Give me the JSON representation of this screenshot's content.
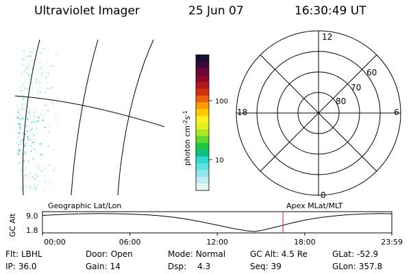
{
  "header": {
    "instrument": "Ultraviolet Imager",
    "date": "25 Jun 07",
    "time": "16:30:49 UT"
  },
  "colorbar": {
    "label_main": "photon cm",
    "label_exp1": "-2",
    "label_s": "s",
    "label_exp2": "-1",
    "ticks": [
      "100",
      "10"
    ],
    "colors": [
      "#1a1030",
      "#3a0a3a",
      "#6a0a3a",
      "#8c0a28",
      "#b01a1a",
      "#d03010",
      "#ee6010",
      "#ff9a00",
      "#ffcc00",
      "#ffee20",
      "#e0f020",
      "#a8e820",
      "#60d830",
      "#20c840",
      "#10c080",
      "#30d8d0",
      "#60e0e0",
      "#90e6ea",
      "#c0ecf0",
      "#e4f2f4"
    ],
    "ticks_values": [
      100,
      10
    ],
    "range": [
      3,
      600
    ]
  },
  "polar": {
    "mlt_labels": {
      "top": "12",
      "left": "18",
      "right": "6",
      "bottom": "0"
    },
    "lat_labels": [
      "60",
      "70",
      "80"
    ]
  },
  "bottom": {
    "ylabel": "GC Alt",
    "yticks": [
      "9.0",
      "1.8"
    ],
    "left_title": "Geographic Lat/Lon",
    "right_title": "Apex MLat/MLT",
    "xticks": [
      "00:00",
      "06:00",
      "12:00",
      "18:00",
      "23:59"
    ]
  },
  "footer": {
    "filter_label": "Flt:",
    "filter": "LBHL",
    "ip_label": "IP:",
    "ip": "36.0",
    "door_label": "Door:",
    "door": "Open",
    "gain_label": "Gain:",
    "gain": "14",
    "mode_label": "Mode:",
    "mode": "Normal",
    "dsp_label": "Dsp:",
    "dsp": "4.3",
    "gcalt_label": "GC Alt:",
    "gcalt": "4.5 Re",
    "seq_label": "Seq:",
    "seq": "39",
    "glat_label": "GLat:",
    "glat": "-52.9",
    "glon_label": "GLon:",
    "glon": "357.8"
  },
  "chart_data": {
    "type": "line",
    "xlabel": "",
    "ylabel": "GC Alt",
    "x_hours": [
      0,
      1,
      2,
      3,
      4,
      5,
      6,
      7,
      8,
      9,
      10,
      11,
      12,
      13,
      14,
      14.5,
      15,
      16,
      17,
      18,
      19,
      20,
      21,
      22,
      23,
      23.98
    ],
    "y_re": [
      8.3,
      8.6,
      8.85,
      9.0,
      9.05,
      9.0,
      8.85,
      8.6,
      8.2,
      7.6,
      6.7,
      5.6,
      4.4,
      3.1,
      2.1,
      1.8,
      2.2,
      3.6,
      5.1,
      6.4,
      7.4,
      8.1,
      8.6,
      8.9,
      9.05,
      9.0
    ],
    "ylim": [
      1.8,
      9.0
    ],
    "xlim": [
      0,
      23.98
    ],
    "current_time_hours": 16.51,
    "current_marker_color": "#c02020"
  }
}
